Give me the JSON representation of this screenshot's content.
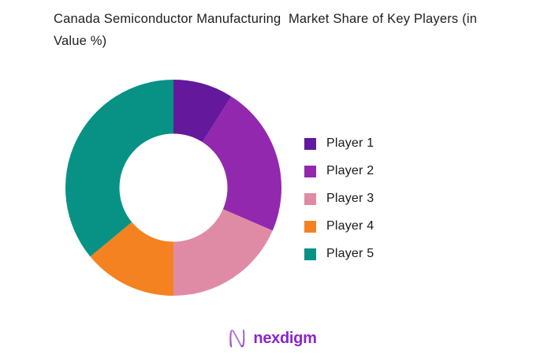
{
  "title": "Canada Semiconductor Manufacturing  Market Share of Key Players (in Value %)",
  "chart_data": {
    "type": "pie",
    "subtype": "donut",
    "title": "Canada Semiconductor Manufacturing  Market Share of Key Players (in Value %)",
    "unit": "percent of value",
    "categories": [
      "Player 1",
      "Player 2",
      "Player 3",
      "Player 4",
      "Player 5"
    ],
    "values": [
      9,
      22.5,
      18.5,
      14,
      36
    ],
    "colors": [
      "#64189c",
      "#9228ae",
      "#e08ba5",
      "#f58220",
      "#079285"
    ],
    "start_angle_deg": 0,
    "direction": "clockwise",
    "inner_radius_ratio": 0.5,
    "data_labels": false,
    "legend_position": "right"
  },
  "legend": {
    "items": [
      {
        "label": "Player 1",
        "color": "#64189c"
      },
      {
        "label": "Player 2",
        "color": "#9228ae"
      },
      {
        "label": "Player 3",
        "color": "#e08ba5"
      },
      {
        "label": "Player 4",
        "color": "#f58220"
      },
      {
        "label": "Player 5",
        "color": "#079285"
      }
    ]
  },
  "footer": {
    "logo_text": "nexdigm",
    "logo_color": "#8b26c9"
  }
}
